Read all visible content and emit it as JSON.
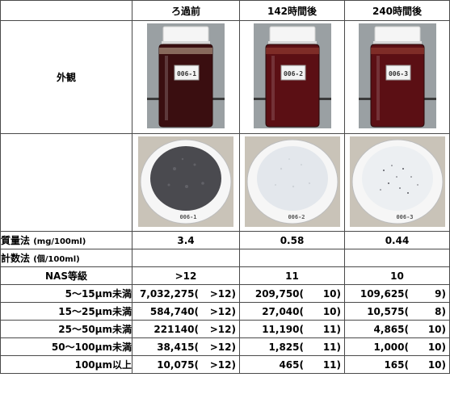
{
  "header": {
    "col1": "ろ過前",
    "col2": "142時間後",
    "col3": "240時間後"
  },
  "appearance_label": "外観",
  "bottles": [
    "006-1",
    "006-2",
    "006-3"
  ],
  "filters": [
    "006-1",
    "006-2",
    "006-3"
  ],
  "colors": {
    "oil_dark": "#3a0e10",
    "oil_red": "#5b0f14",
    "cap": "#f4f4f4",
    "filter_dark": "#4a4a4f",
    "filter_light": "#e9ecef"
  },
  "mass": {
    "label_main": "質量法",
    "label_unit": "(mg/100ml)",
    "values": [
      "3.4",
      "0.58",
      "0.44"
    ]
  },
  "count": {
    "label_main": "計数法",
    "label_unit": "(個/100ml)"
  },
  "nas": {
    "label": "NAS等級",
    "values": [
      ">12",
      "11",
      "10"
    ]
  },
  "rows": [
    {
      "label": "5〜15μm未満",
      "cells": [
        {
          "count": "7,032,275(",
          "class": ">12)"
        },
        {
          "count": "209,750(",
          "class": "10)"
        },
        {
          "count": "109,625(",
          "class": "9)"
        }
      ]
    },
    {
      "label": "15〜25μm未満",
      "cells": [
        {
          "count": "584,740(",
          "class": ">12)"
        },
        {
          "count": "27,040(",
          "class": "10)"
        },
        {
          "count": "10,575(",
          "class": "8)"
        }
      ]
    },
    {
      "label": "25〜50μm未満",
      "cells": [
        {
          "count": "221140(",
          "class": ">12)"
        },
        {
          "count": "11,190(",
          "class": "11)"
        },
        {
          "count": "4,865(",
          "class": "10)"
        }
      ]
    },
    {
      "label": "50〜100μm未満",
      "cells": [
        {
          "count": "38,415(",
          "class": ">12)"
        },
        {
          "count": "1,825(",
          "class": "11)"
        },
        {
          "count": "1,000(",
          "class": "10)"
        }
      ]
    },
    {
      "label": "100μm以上",
      "cells": [
        {
          "count": "10,075(",
          "class": ">12)"
        },
        {
          "count": "465(",
          "class": "11)"
        },
        {
          "count": "165(",
          "class": "10)"
        }
      ]
    }
  ]
}
